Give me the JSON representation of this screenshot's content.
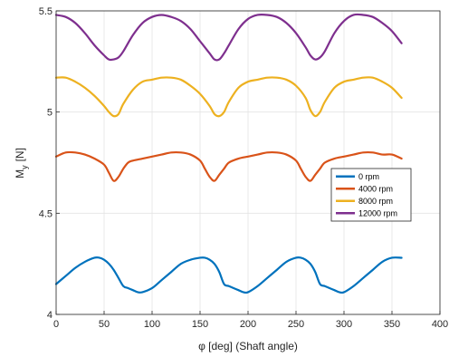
{
  "chart_data": {
    "type": "line",
    "title": "",
    "xlabel": "φ   [deg] (Shaft angle)",
    "ylabel": "M",
    "ylabel_sub": "y",
    "ylabel_unit": "[N]",
    "xlim": [
      0,
      400
    ],
    "ylim": [
      4,
      5.5
    ],
    "xticks": [
      "0",
      "50",
      "100",
      "150",
      "200",
      "250",
      "300",
      "350",
      "400"
    ],
    "yticks": [
      "4",
      "4.5",
      "5",
      "5.5"
    ],
    "grid": true,
    "legend_placement": "right",
    "series": [
      {
        "name": "0    rpm",
        "color": "#0072BD",
        "x": [
          0,
          10,
          20,
          30,
          40,
          45,
          50,
          55,
          60,
          65,
          70,
          75,
          80,
          85,
          90,
          100,
          110,
          120,
          130,
          140,
          150,
          155,
          160,
          165,
          170,
          175,
          180,
          185,
          190,
          195,
          200,
          210,
          220,
          230,
          240,
          250,
          255,
          260,
          265,
          270,
          275,
          280,
          285,
          290,
          295,
          300,
          310,
          320,
          330,
          340,
          350,
          360
        ],
        "y": [
          4.15,
          4.19,
          4.23,
          4.26,
          4.28,
          4.28,
          4.27,
          4.25,
          4.22,
          4.18,
          4.14,
          4.13,
          4.12,
          4.11,
          4.11,
          4.13,
          4.17,
          4.21,
          4.25,
          4.27,
          4.28,
          4.28,
          4.27,
          4.25,
          4.21,
          4.15,
          4.14,
          4.13,
          4.12,
          4.11,
          4.11,
          4.14,
          4.18,
          4.22,
          4.26,
          4.28,
          4.28,
          4.27,
          4.25,
          4.21,
          4.15,
          4.14,
          4.13,
          4.12,
          4.11,
          4.11,
          4.14,
          4.18,
          4.22,
          4.26,
          4.28,
          4.28
        ]
      },
      {
        "name": "4000    rpm",
        "color": "#D95319",
        "x": [
          0,
          10,
          20,
          30,
          40,
          50,
          55,
          60,
          65,
          70,
          75,
          80,
          90,
          100,
          110,
          120,
          130,
          140,
          150,
          155,
          160,
          165,
          170,
          175,
          180,
          190,
          200,
          210,
          220,
          230,
          240,
          250,
          255,
          260,
          265,
          270,
          275,
          280,
          290,
          300,
          310,
          320,
          330,
          340,
          350,
          360
        ],
        "y": [
          4.78,
          4.8,
          4.8,
          4.79,
          4.77,
          4.74,
          4.7,
          4.66,
          4.68,
          4.72,
          4.75,
          4.76,
          4.77,
          4.78,
          4.79,
          4.8,
          4.8,
          4.79,
          4.76,
          4.72,
          4.68,
          4.66,
          4.69,
          4.72,
          4.75,
          4.77,
          4.78,
          4.79,
          4.8,
          4.8,
          4.79,
          4.76,
          4.72,
          4.68,
          4.66,
          4.69,
          4.72,
          4.75,
          4.77,
          4.78,
          4.79,
          4.8,
          4.8,
          4.79,
          4.79,
          4.77
        ]
      },
      {
        "name": "8000    rpm",
        "color": "#EDB120",
        "x": [
          0,
          10,
          20,
          30,
          40,
          50,
          55,
          60,
          65,
          70,
          80,
          90,
          100,
          110,
          120,
          130,
          140,
          150,
          160,
          165,
          170,
          175,
          180,
          190,
          200,
          210,
          220,
          230,
          240,
          250,
          260,
          265,
          270,
          275,
          280,
          290,
          300,
          310,
          320,
          330,
          340,
          350,
          360
        ],
        "y": [
          5.17,
          5.17,
          5.15,
          5.12,
          5.08,
          5.03,
          5.0,
          4.98,
          4.99,
          5.04,
          5.11,
          5.15,
          5.16,
          5.17,
          5.17,
          5.16,
          5.13,
          5.09,
          5.03,
          4.99,
          4.98,
          5.0,
          5.05,
          5.12,
          5.15,
          5.16,
          5.17,
          5.17,
          5.16,
          5.13,
          5.07,
          5.01,
          4.98,
          5.0,
          5.05,
          5.12,
          5.15,
          5.16,
          5.17,
          5.17,
          5.15,
          5.12,
          5.07
        ]
      },
      {
        "name": "12000    rpm",
        "color": "#7E2F8E",
        "x": [
          0,
          10,
          20,
          30,
          40,
          50,
          55,
          60,
          65,
          70,
          80,
          90,
          100,
          110,
          120,
          130,
          140,
          150,
          160,
          165,
          170,
          175,
          180,
          190,
          200,
          210,
          220,
          230,
          240,
          250,
          260,
          265,
          270,
          275,
          280,
          290,
          300,
          310,
          320,
          330,
          340,
          350,
          360
        ],
        "y": [
          5.48,
          5.47,
          5.44,
          5.39,
          5.33,
          5.28,
          5.26,
          5.26,
          5.27,
          5.3,
          5.38,
          5.44,
          5.47,
          5.48,
          5.47,
          5.45,
          5.41,
          5.35,
          5.29,
          5.26,
          5.26,
          5.29,
          5.33,
          5.41,
          5.46,
          5.48,
          5.48,
          5.47,
          5.44,
          5.39,
          5.32,
          5.28,
          5.26,
          5.27,
          5.3,
          5.39,
          5.45,
          5.48,
          5.48,
          5.47,
          5.44,
          5.4,
          5.34
        ]
      }
    ]
  }
}
